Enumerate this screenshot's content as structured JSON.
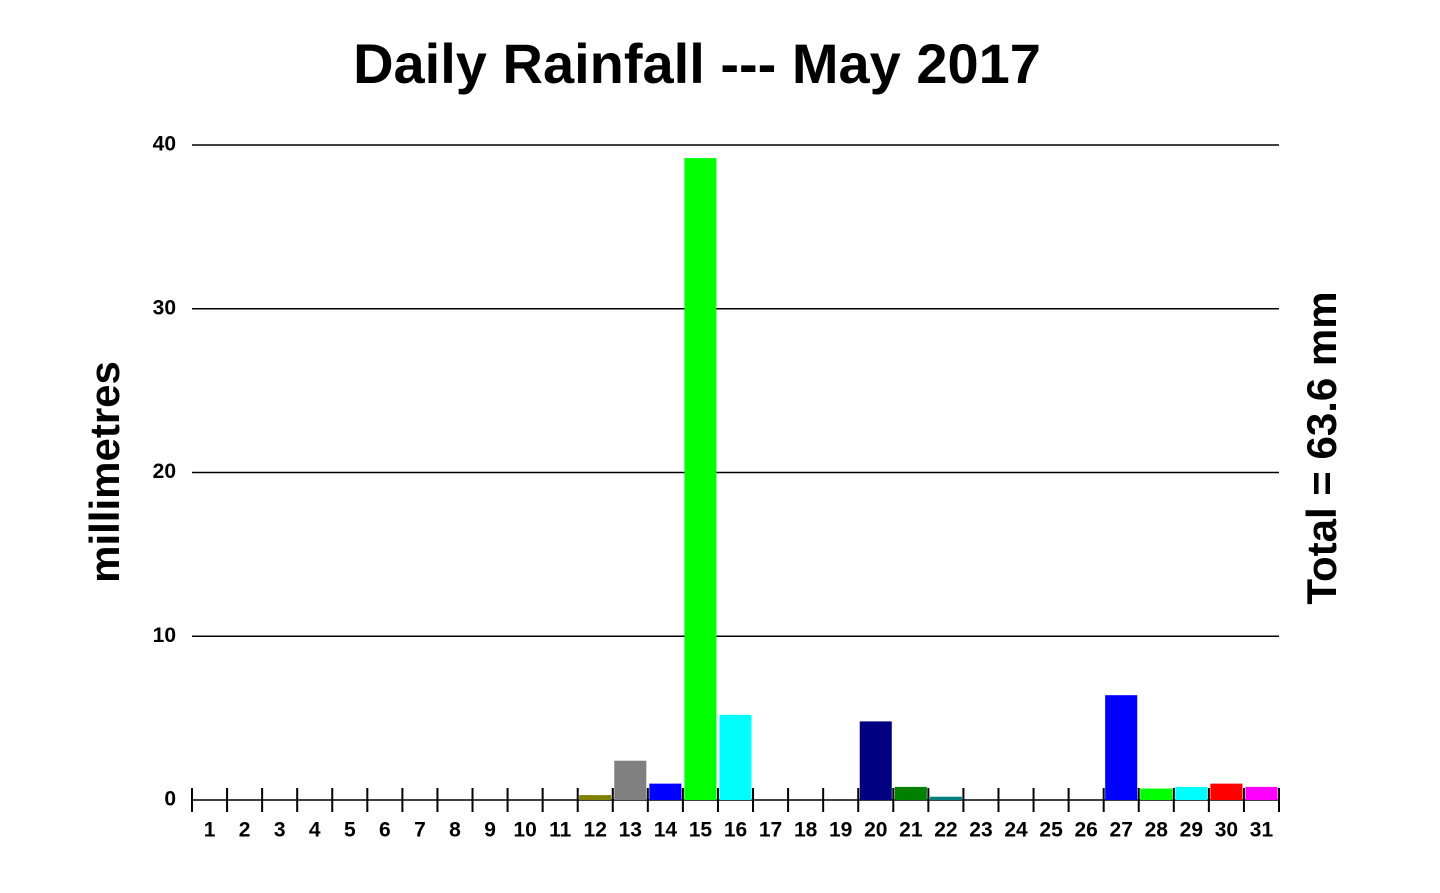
{
  "chart_data": {
    "type": "bar",
    "title": "Daily Rainfall --- May 2017",
    "y_label": "millimetres",
    "annotation": "Total = 63.6 mm",
    "categories": [
      "1",
      "2",
      "3",
      "4",
      "5",
      "6",
      "7",
      "8",
      "9",
      "10",
      "11",
      "12",
      "13",
      "14",
      "15",
      "16",
      "17",
      "18",
      "19",
      "20",
      "21",
      "22",
      "23",
      "24",
      "25",
      "26",
      "27",
      "28",
      "29",
      "30",
      "31"
    ],
    "values": [
      0,
      0,
      0,
      0,
      0,
      0,
      0,
      0,
      0,
      0,
      0,
      0.3,
      2.4,
      1.0,
      39.2,
      5.2,
      0,
      0,
      0,
      4.8,
      0.8,
      0.2,
      0,
      0,
      0,
      0,
      6.4,
      0.7,
      0.8,
      1.0,
      0.8
    ],
    "colors": [
      null,
      null,
      null,
      null,
      null,
      null,
      null,
      null,
      null,
      null,
      null,
      "#808000",
      "#808080",
      "#0000ff",
      "#00ff00",
      "#00ffff",
      null,
      null,
      null,
      "#000080",
      "#008000",
      "#008080",
      null,
      null,
      null,
      null,
      "#0000ff",
      "#00ff00",
      "#00ffff",
      "#ff0000",
      "#ff00ff"
    ],
    "ylim": [
      0,
      40
    ],
    "yticks": [
      0,
      10,
      20,
      30,
      40
    ],
    "grid": true
  }
}
